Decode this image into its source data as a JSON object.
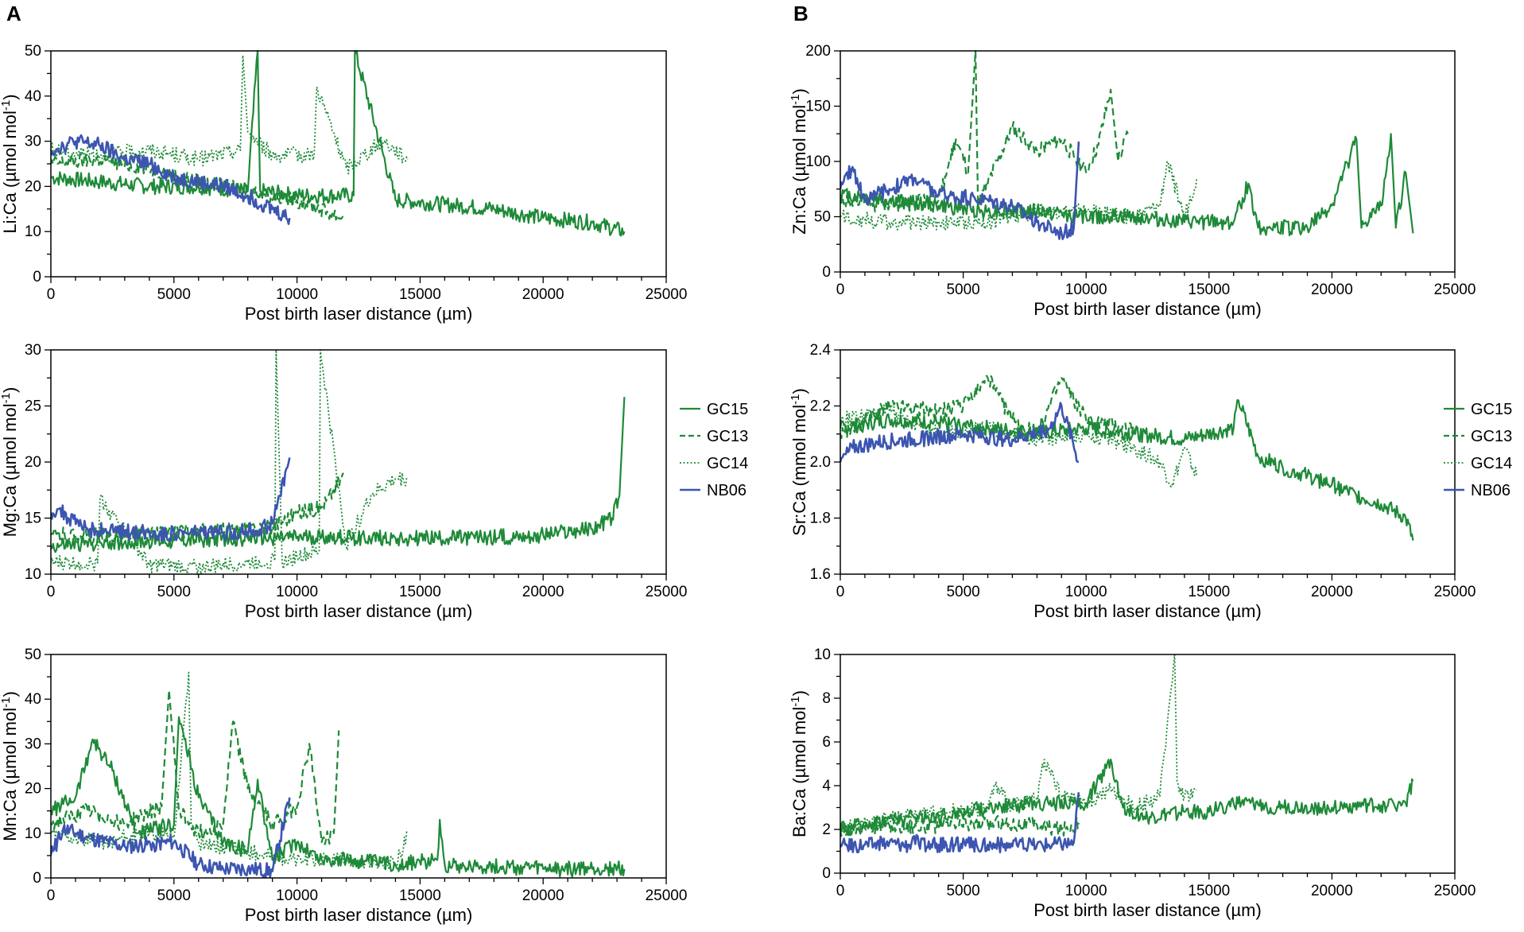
{
  "panel_labels": [
    "A",
    "B"
  ],
  "colors": {
    "GC15": "#1e8a38",
    "GC13": "#1e8a38",
    "GC14": "#1e8a38",
    "NB06": "#3c55b0"
  },
  "chart_data": [
    {
      "type": "line",
      "panel": "A",
      "ylabel": "Li:Ca (µmol mol-1)",
      "xlabel": "Post birth laser distance (µm)",
      "xlim": [
        0,
        25000
      ],
      "ylim": [
        0,
        50
      ],
      "xticks": [
        0,
        5000,
        10000,
        15000,
        20000,
        25000
      ],
      "yticks": [
        0,
        10,
        20,
        30,
        40,
        50
      ],
      "xtick_labels": [
        "0",
        "5000",
        "10000",
        "15000",
        "20000",
        "25000"
      ],
      "ytick_labels": [
        "0",
        "10",
        "20",
        "30",
        "40",
        "50"
      ],
      "series": [
        {
          "name": "GC15",
          "style": "solid",
          "x": [
            0,
            2000,
            4000,
            6000,
            8000,
            8400,
            8500,
            10000,
            12300,
            12350,
            14000,
            16000,
            18000,
            20000,
            22000,
            23300
          ],
          "y": [
            22,
            21,
            20,
            20,
            19,
            50,
            19,
            18,
            18,
            50,
            17,
            16,
            15,
            13,
            12,
            10
          ]
        },
        {
          "name": "GC13",
          "style": "dashed",
          "x": [
            0,
            2000,
            4000,
            6000,
            8000,
            10000,
            11900
          ],
          "y": [
            25,
            26,
            24,
            21,
            19,
            17,
            13
          ]
        },
        {
          "name": "GC14",
          "style": "dotted",
          "x": [
            0,
            2000,
            4000,
            6000,
            7700,
            7800,
            8000,
            9000,
            10700,
            10800,
            12000,
            13500,
            14500
          ],
          "y": [
            28,
            27,
            28,
            26,
            28,
            49,
            32,
            27,
            27,
            42,
            24,
            30,
            26
          ]
        },
        {
          "name": "NB06",
          "style": "solid",
          "x": [
            0,
            1000,
            2000,
            3000,
            4000,
            5000,
            6000,
            7000,
            8000,
            9000,
            9700
          ],
          "y": [
            28,
            30,
            29,
            26,
            25,
            22,
            21,
            20,
            18,
            15,
            13
          ]
        }
      ]
    },
    {
      "type": "line",
      "panel": "A",
      "ylabel": "Mg:Ca (µmol mol-1)",
      "xlabel": "Post birth laser distance (µm)",
      "xlim": [
        0,
        25000
      ],
      "ylim": [
        10,
        30
      ],
      "xticks": [
        0,
        5000,
        10000,
        15000,
        20000,
        25000
      ],
      "yticks": [
        10,
        15,
        20,
        25,
        30
      ],
      "xtick_labels": [
        "0",
        "5000",
        "10000",
        "15000",
        "20000",
        "25000"
      ],
      "ytick_labels": [
        "10",
        "15",
        "20",
        "25",
        "30"
      ],
      "series": [
        {
          "name": "GC15",
          "style": "solid",
          "x": [
            0,
            2000,
            5000,
            8000,
            11000,
            14000,
            17000,
            20000,
            22000,
            22800,
            23100,
            23300
          ],
          "y": [
            12.5,
            12.8,
            13,
            13.2,
            13.3,
            13.2,
            13.2,
            13.5,
            14,
            15,
            17,
            25.8
          ]
        },
        {
          "name": "GC13",
          "style": "dashed",
          "x": [
            0,
            2000,
            4000,
            6000,
            8000,
            9000,
            10000,
            11000,
            11500,
            11900
          ],
          "y": [
            13.5,
            13.4,
            13.6,
            13.8,
            14,
            14.3,
            15.5,
            16,
            17.5,
            19
          ]
        },
        {
          "name": "GC14",
          "style": "dotted",
          "x": [
            0,
            1900,
            2000,
            4000,
            6000,
            8000,
            9100,
            9150,
            9400,
            10000,
            10900,
            10950,
            12000,
            13000,
            14000,
            14500
          ],
          "y": [
            11,
            11,
            16.8,
            10.8,
            10.6,
            11,
            11.2,
            30,
            11,
            11.6,
            12,
            30,
            12.5,
            17,
            18.5,
            18.5
          ]
        },
        {
          "name": "NB06",
          "style": "solid",
          "x": [
            0,
            300,
            700,
            1500,
            3000,
            5000,
            7000,
            8500,
            9000,
            9300,
            9700
          ],
          "y": [
            15.5,
            15.8,
            15,
            14,
            13.8,
            13.6,
            13.7,
            14,
            14.5,
            17,
            20.4
          ]
        }
      ]
    },
    {
      "type": "line",
      "panel": "A",
      "ylabel": "Mn:Ca (µmol mol-1)",
      "xlabel": "Post birth laser distance (µm)",
      "xlim": [
        0,
        25000
      ],
      "ylim": [
        0,
        50
      ],
      "xticks": [
        0,
        5000,
        10000,
        15000,
        20000,
        25000
      ],
      "yticks": [
        0,
        10,
        20,
        30,
        40,
        50
      ],
      "xtick_labels": [
        "0",
        "5000",
        "10000",
        "15000",
        "20000",
        "25000"
      ],
      "ytick_labels": [
        "0",
        "10",
        "20",
        "30",
        "40",
        "50"
      ],
      "series": [
        {
          "name": "GC15",
          "style": "solid",
          "x": [
            0,
            1000,
            1700,
            2500,
            3500,
            5000,
            5200,
            6000,
            7000,
            8000,
            8400,
            9000,
            10000,
            11000,
            12000,
            14000,
            15700,
            15800,
            16000,
            18000,
            20000,
            22000,
            23300
          ],
          "y": [
            15,
            18,
            31,
            24,
            10,
            12,
            36,
            18,
            8,
            6,
            22,
            4,
            8,
            4,
            4,
            3,
            4,
            13,
            3,
            2.5,
            2,
            2,
            2
          ]
        },
        {
          "name": "GC13",
          "style": "dashed",
          "x": [
            0,
            1500,
            3000,
            4500,
            4800,
            5200,
            6000,
            7000,
            7400,
            8000,
            9000,
            10000,
            10500,
            11000,
            11500,
            11700
          ],
          "y": [
            12,
            15,
            12,
            16,
            42,
            15,
            10,
            12,
            35,
            20,
            12,
            16,
            30,
            8,
            10,
            33
          ]
        },
        {
          "name": "GC14",
          "style": "dotted",
          "x": [
            0,
            2000,
            4000,
            5000,
            5600,
            5700,
            6000,
            8000,
            9000,
            10000,
            12000,
            14000,
            14500
          ],
          "y": [
            10,
            8,
            10,
            9,
            46,
            12,
            8,
            6,
            5,
            4,
            4,
            3,
            10
          ]
        },
        {
          "name": "NB06",
          "style": "solid",
          "x": [
            0,
            500,
            1500,
            3000,
            5000,
            6000,
            7000,
            8000,
            9000,
            9700
          ],
          "y": [
            5,
            11,
            9,
            7,
            8,
            3,
            2,
            2,
            1.5,
            18
          ]
        }
      ]
    },
    {
      "type": "line",
      "panel": "B",
      "ylabel": "Zn:Ca (µmol mol-1)",
      "xlabel": "Post birth laser distance (µm)",
      "xlim": [
        0,
        25000
      ],
      "ylim": [
        0,
        200
      ],
      "xticks": [
        0,
        5000,
        10000,
        15000,
        20000,
        25000
      ],
      "yticks": [
        0,
        50,
        100,
        150,
        200
      ],
      "xtick_labels": [
        "0",
        "5000",
        "10000",
        "15000",
        "20000",
        "25000"
      ],
      "ytick_labels": [
        "0",
        "50",
        "100",
        "150",
        "200"
      ],
      "series": [
        {
          "name": "GC15",
          "style": "solid",
          "x": [
            0,
            2000,
            4000,
            6000,
            8000,
            10000,
            12000,
            14000,
            16000,
            16600,
            17000,
            19000,
            20000,
            21000,
            21200,
            22000,
            22400,
            22600,
            23000,
            23300
          ],
          "y": [
            70,
            65,
            60,
            55,
            55,
            50,
            50,
            45,
            45,
            80,
            40,
            40,
            60,
            120,
            40,
            60,
            125,
            40,
            90,
            35
          ]
        },
        {
          "name": "GC13",
          "style": "dashed",
          "x": [
            0,
            2000,
            4000,
            4700,
            5200,
            5500,
            5600,
            6000,
            7000,
            8000,
            9000,
            10000,
            10500,
            11000,
            11300,
            11700
          ],
          "y": [
            65,
            60,
            65,
            120,
            90,
            200,
            60,
            80,
            130,
            110,
            120,
            90,
            115,
            165,
            100,
            125
          ]
        },
        {
          "name": "GC14",
          "style": "dotted",
          "x": [
            0,
            2000,
            4000,
            6000,
            8000,
            10000,
            12000,
            13000,
            13300,
            14000,
            14500
          ],
          "y": [
            50,
            45,
            45,
            45,
            55,
            55,
            50,
            60,
            100,
            50,
            85
          ]
        },
        {
          "name": "NB06",
          "style": "solid",
          "x": [
            0,
            500,
            1000,
            2000,
            3000,
            4000,
            6000,
            7000,
            8000,
            9000,
            9500,
            9700
          ],
          "y": [
            75,
            95,
            65,
            75,
            85,
            70,
            65,
            60,
            45,
            35,
            40,
            118
          ]
        }
      ]
    },
    {
      "type": "line",
      "panel": "B",
      "ylabel": "Sr:Ca (mmol mol-1)",
      "xlabel": "Post birth laser distance (µm)",
      "xlim": [
        0,
        25000
      ],
      "ylim": [
        1.6,
        2.4
      ],
      "xticks": [
        0,
        5000,
        10000,
        15000,
        20000,
        25000
      ],
      "yticks": [
        1.6,
        1.8,
        2.0,
        2.2,
        2.4
      ],
      "xtick_labels": [
        "0",
        "5000",
        "10000",
        "15000",
        "20000",
        "25000"
      ],
      "ytick_labels": [
        "1.6",
        "1.8",
        "2.0",
        "2.2",
        "2.4"
      ],
      "series": [
        {
          "name": "GC15",
          "style": "solid",
          "x": [
            0,
            2000,
            4000,
            6000,
            8000,
            10000,
            12000,
            14000,
            16000,
            16200,
            17000,
            18000,
            19000,
            20000,
            21000,
            22000,
            23000,
            23300
          ],
          "y": [
            2.12,
            2.15,
            2.14,
            2.12,
            2.1,
            2.12,
            2.1,
            2.08,
            2.12,
            2.22,
            2.02,
            1.98,
            1.95,
            1.92,
            1.88,
            1.85,
            1.8,
            1.72
          ]
        },
        {
          "name": "GC13",
          "style": "dashed",
          "x": [
            0,
            2000,
            4000,
            5000,
            6000,
            7000,
            8000,
            9000,
            10000,
            12000
          ],
          "y": [
            2.1,
            2.2,
            2.18,
            2.2,
            2.3,
            2.15,
            2.1,
            2.3,
            2.15,
            2.12
          ]
        },
        {
          "name": "GC14",
          "style": "dotted",
          "x": [
            0,
            2000,
            4000,
            6000,
            8000,
            10000,
            12000,
            13000,
            13500,
            14000,
            14500
          ],
          "y": [
            2.15,
            2.18,
            2.1,
            2.12,
            2.08,
            2.1,
            2.05,
            2.0,
            1.92,
            2.05,
            1.95
          ]
        },
        {
          "name": "NB06",
          "style": "solid",
          "x": [
            0,
            500,
            1500,
            3000,
            5000,
            7000,
            8500,
            9000,
            9700
          ],
          "y": [
            2.0,
            2.05,
            2.07,
            2.08,
            2.1,
            2.08,
            2.12,
            2.2,
            2.0
          ]
        }
      ]
    },
    {
      "type": "line",
      "panel": "B",
      "ylabel": "Ba:Ca (µmol mol-1)",
      "xlabel": "Post birth laser distance (µm)",
      "xlim": [
        0,
        25000
      ],
      "ylim": [
        0,
        10
      ],
      "xticks": [
        0,
        5000,
        10000,
        15000,
        20000,
        25000
      ],
      "yticks": [
        0,
        2,
        4,
        6,
        8,
        10
      ],
      "xtick_labels": [
        "0",
        "5000",
        "10000",
        "15000",
        "20000",
        "25000"
      ],
      "ytick_labels": [
        "0",
        "2",
        "4",
        "6",
        "8",
        "10"
      ],
      "series": [
        {
          "name": "GC15",
          "style": "solid",
          "x": [
            0,
            2000,
            4000,
            6000,
            8000,
            10000,
            11000,
            11500,
            12500,
            14000,
            15000,
            16000,
            18000,
            20000,
            22000,
            23000,
            23300
          ],
          "y": [
            2.0,
            2.5,
            2.6,
            3.0,
            3.2,
            3.2,
            5.2,
            3.0,
            2.5,
            2.8,
            2.8,
            3.2,
            3.0,
            3.0,
            3.1,
            3.2,
            4.2
          ]
        },
        {
          "name": "GC13",
          "style": "dashed",
          "x": [
            0,
            2000,
            4000,
            6000,
            8000,
            9000,
            9700
          ],
          "y": [
            2.0,
            2.2,
            2.1,
            2.3,
            2.2,
            2.0,
            2.3
          ]
        },
        {
          "name": "GC14",
          "style": "dotted",
          "x": [
            0,
            2000,
            4000,
            6000,
            6300,
            7000,
            8000,
            8300,
            9000,
            10000,
            11000,
            12000,
            13000,
            13600,
            13700,
            14000,
            14500
          ],
          "y": [
            2.0,
            2.5,
            2.8,
            3.0,
            4.0,
            3.0,
            3.5,
            5.2,
            3.5,
            3.2,
            3.8,
            3.0,
            3.5,
            10,
            4.2,
            3.5,
            3.8
          ]
        },
        {
          "name": "NB06",
          "style": "solid",
          "x": [
            0,
            200,
            1000,
            2000,
            2800,
            3000,
            3200,
            4000,
            6000,
            8000,
            9500,
            9700
          ],
          "y": [
            1.2,
            1.3,
            1.3,
            1.4,
            1.3,
            1.7,
            1.3,
            1.3,
            1.3,
            1.3,
            1.4,
            3.7
          ]
        }
      ]
    }
  ]
}
